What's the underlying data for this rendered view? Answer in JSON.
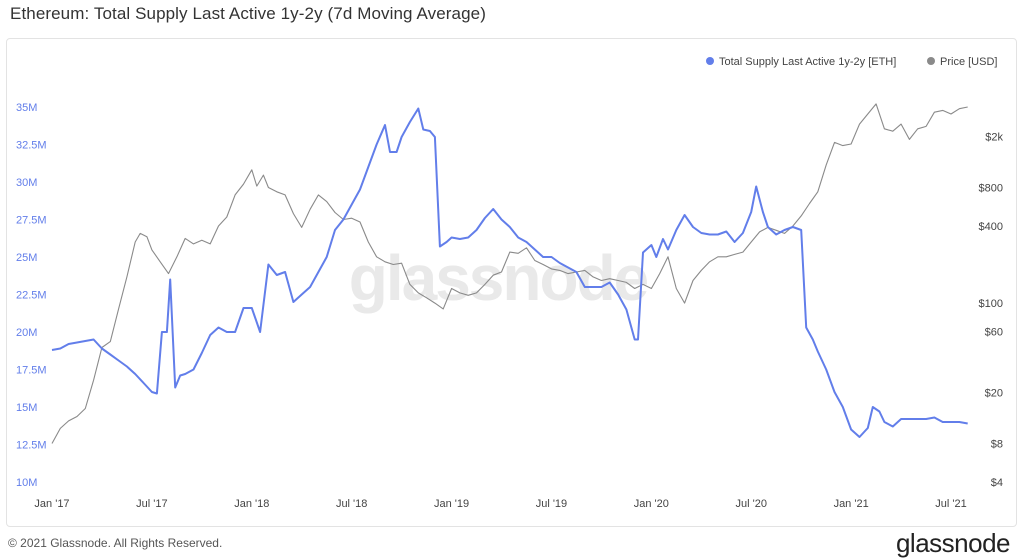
{
  "header": {
    "title": "Ethereum: Total Supply Last Active 1y-2y (7d Moving Average)"
  },
  "footer": {
    "copyright": "© 2021 Glassnode. All Rights Reserved.",
    "brand": "glassnode"
  },
  "watermark": "glassnode",
  "colors": {
    "supply": "#627eea",
    "price": "#8a8a8a"
  },
  "chart_data": {
    "type": "line",
    "title": "Ethereum: Total Supply Last Active 1y-2y (7d Moving Average)",
    "xlabel": "",
    "ylabel": "",
    "x_ticks": [
      "Jan '17",
      "Jul '17",
      "Jan '18",
      "Jul '18",
      "Jan '19",
      "Jul '19",
      "Jan '20",
      "Jul '20",
      "Jan '21",
      "Jul '21"
    ],
    "x_tick_positions": [
      0,
      6,
      12,
      18,
      24,
      30,
      36,
      42,
      48,
      54
    ],
    "y_left": {
      "ticks": [
        "10M",
        "12.5M",
        "15M",
        "17.5M",
        "20M",
        "22.5M",
        "25M",
        "27.5M",
        "30M",
        "32.5M",
        "35M"
      ],
      "tick_values": [
        10,
        12.5,
        15,
        17.5,
        20,
        22.5,
        25,
        27.5,
        30,
        32.5,
        35
      ],
      "range": [
        10,
        35.6
      ],
      "unit": "M ETH"
    },
    "y_right": {
      "ticks": [
        "$4",
        "$8",
        "$20",
        "$60",
        "$100",
        "$400",
        "$800",
        "$2k"
      ],
      "tick_values": [
        4,
        8,
        20,
        60,
        100,
        400,
        800,
        2000
      ],
      "range": [
        4,
        4000
      ],
      "scale": "log",
      "unit": "USD"
    },
    "legend": [
      {
        "name": "Total Supply Last Active 1y-2y [ETH]",
        "color": "#627eea"
      },
      {
        "name": "Price [USD]",
        "color": "#8a8a8a"
      }
    ],
    "legend_position": "top-right",
    "series": [
      {
        "name": "Total Supply Last Active 1y-2y [ETH]",
        "axis": "left",
        "points": [
          [
            0,
            18.8
          ],
          [
            0.5,
            18.9
          ],
          [
            1,
            19.2
          ],
          [
            1.5,
            19.3
          ],
          [
            2,
            19.4
          ],
          [
            2.5,
            19.5
          ],
          [
            3,
            18.9
          ],
          [
            3.5,
            18.5
          ],
          [
            4,
            18.1
          ],
          [
            4.5,
            17.7
          ],
          [
            5,
            17.2
          ],
          [
            5.5,
            16.6
          ],
          [
            6,
            16.0
          ],
          [
            6.3,
            15.9
          ],
          [
            6.6,
            20.0
          ],
          [
            6.9,
            20.0
          ],
          [
            7.1,
            23.5
          ],
          [
            7.4,
            16.3
          ],
          [
            7.7,
            17.1
          ],
          [
            8,
            17.2
          ],
          [
            8.5,
            17.5
          ],
          [
            9,
            18.6
          ],
          [
            9.5,
            19.8
          ],
          [
            10,
            20.3
          ],
          [
            10.5,
            20.0
          ],
          [
            11,
            20.0
          ],
          [
            11.5,
            21.6
          ],
          [
            12,
            21.6
          ],
          [
            12.5,
            20.0
          ],
          [
            13,
            24.5
          ],
          [
            13.5,
            23.8
          ],
          [
            14,
            24.0
          ],
          [
            14.5,
            22.0
          ],
          [
            15,
            22.5
          ],
          [
            15.5,
            23.0
          ],
          [
            16,
            24.0
          ],
          [
            16.5,
            25.0
          ],
          [
            17,
            26.8
          ],
          [
            17.5,
            27.5
          ],
          [
            18,
            28.5
          ],
          [
            18.5,
            29.5
          ],
          [
            19,
            31.0
          ],
          [
            19.5,
            32.5
          ],
          [
            20,
            33.8
          ],
          [
            20.3,
            32.0
          ],
          [
            20.7,
            32.0
          ],
          [
            21,
            33.0
          ],
          [
            21.5,
            34.0
          ],
          [
            22,
            34.9
          ],
          [
            22.3,
            33.5
          ],
          [
            22.7,
            33.4
          ],
          [
            23,
            33.0
          ],
          [
            23.3,
            25.7
          ],
          [
            23.7,
            26.0
          ],
          [
            24,
            26.3
          ],
          [
            24.5,
            26.2
          ],
          [
            25,
            26.3
          ],
          [
            25.5,
            26.8
          ],
          [
            26,
            27.6
          ],
          [
            26.5,
            28.2
          ],
          [
            27,
            27.5
          ],
          [
            27.5,
            27.0
          ],
          [
            28,
            26.3
          ],
          [
            28.5,
            26.0
          ],
          [
            29,
            25.5
          ],
          [
            29.5,
            25.0
          ],
          [
            30,
            25.0
          ],
          [
            30.5,
            24.6
          ],
          [
            31,
            24.3
          ],
          [
            31.5,
            24.0
          ],
          [
            32,
            23.0
          ],
          [
            32.5,
            23.0
          ],
          [
            33,
            23.0
          ],
          [
            33.5,
            23.3
          ],
          [
            34,
            22.5
          ],
          [
            34.5,
            21.5
          ],
          [
            35,
            19.5
          ],
          [
            35.2,
            19.5
          ],
          [
            35.5,
            25.3
          ],
          [
            36,
            25.8
          ],
          [
            36.3,
            25.0
          ],
          [
            36.7,
            26.2
          ],
          [
            37,
            25.5
          ],
          [
            37.5,
            26.8
          ],
          [
            38,
            27.8
          ],
          [
            38.5,
            27.0
          ],
          [
            39,
            26.6
          ],
          [
            39.5,
            26.5
          ],
          [
            40,
            26.5
          ],
          [
            40.5,
            26.7
          ],
          [
            41,
            26.0
          ],
          [
            41.5,
            26.6
          ],
          [
            42,
            28.0
          ],
          [
            42.3,
            29.7
          ],
          [
            42.7,
            28.0
          ],
          [
            43,
            27.0
          ],
          [
            43.5,
            26.5
          ],
          [
            44,
            26.8
          ],
          [
            44.5,
            27.0
          ],
          [
            45,
            26.8
          ],
          [
            45.3,
            20.3
          ],
          [
            45.7,
            19.5
          ],
          [
            46,
            18.7
          ],
          [
            46.5,
            17.5
          ],
          [
            47,
            16.0
          ],
          [
            47.5,
            15.0
          ],
          [
            48,
            13.5
          ],
          [
            48.5,
            13.0
          ],
          [
            49,
            13.6
          ],
          [
            49.3,
            15.0
          ],
          [
            49.7,
            14.7
          ],
          [
            50,
            14.0
          ],
          [
            50.5,
            13.7
          ],
          [
            51,
            14.2
          ],
          [
            51.5,
            14.2
          ],
          [
            52,
            14.2
          ],
          [
            52.5,
            14.2
          ],
          [
            53,
            14.3
          ],
          [
            53.5,
            14.0
          ],
          [
            54,
            14.0
          ],
          [
            54.5,
            14.0
          ],
          [
            55,
            13.9
          ]
        ]
      },
      {
        "name": "Price [USD]",
        "axis": "right",
        "points": [
          [
            0,
            8.0
          ],
          [
            0.5,
            10.5
          ],
          [
            1,
            12.0
          ],
          [
            1.5,
            13.0
          ],
          [
            2,
            15.0
          ],
          [
            2.5,
            25
          ],
          [
            3,
            45
          ],
          [
            3.5,
            50
          ],
          [
            4,
            90
          ],
          [
            4.5,
            160
          ],
          [
            5,
            300
          ],
          [
            5.3,
            350
          ],
          [
            5.7,
            330
          ],
          [
            6,
            260
          ],
          [
            6.5,
            210
          ],
          [
            7,
            170
          ],
          [
            7.5,
            230
          ],
          [
            8,
            320
          ],
          [
            8.5,
            290
          ],
          [
            9,
            310
          ],
          [
            9.5,
            290
          ],
          [
            10,
            400
          ],
          [
            10.5,
            470
          ],
          [
            11,
            700
          ],
          [
            11.5,
            850
          ],
          [
            12,
            1100
          ],
          [
            12.3,
            820
          ],
          [
            12.7,
            1000
          ],
          [
            13,
            800
          ],
          [
            13.5,
            740
          ],
          [
            14,
            700
          ],
          [
            14.5,
            500
          ],
          [
            15,
            390
          ],
          [
            15.5,
            540
          ],
          [
            16,
            700
          ],
          [
            16.5,
            620
          ],
          [
            17,
            510
          ],
          [
            17.5,
            450
          ],
          [
            18,
            460
          ],
          [
            18.5,
            430
          ],
          [
            19,
            300
          ],
          [
            19.5,
            230
          ],
          [
            20,
            210
          ],
          [
            20.5,
            200
          ],
          [
            21,
            205
          ],
          [
            21.5,
            140
          ],
          [
            22,
            120
          ],
          [
            22.5,
            110
          ],
          [
            23,
            100
          ],
          [
            23.5,
            90
          ],
          [
            24,
            130
          ],
          [
            24.5,
            120
          ],
          [
            25,
            115
          ],
          [
            25.5,
            120
          ],
          [
            26,
            140
          ],
          [
            26.5,
            165
          ],
          [
            27,
            175
          ],
          [
            27.5,
            250
          ],
          [
            28,
            245
          ],
          [
            28.5,
            270
          ],
          [
            29,
            215
          ],
          [
            29.5,
            200
          ],
          [
            30,
            185
          ],
          [
            30.5,
            180
          ],
          [
            31,
            170
          ],
          [
            31.5,
            175
          ],
          [
            32,
            180
          ],
          [
            32.5,
            160
          ],
          [
            33,
            150
          ],
          [
            33.5,
            155
          ],
          [
            34,
            150
          ],
          [
            34.5,
            145
          ],
          [
            35,
            130
          ],
          [
            35.5,
            140
          ],
          [
            36,
            130
          ],
          [
            36.5,
            170
          ],
          [
            37,
            230
          ],
          [
            37.5,
            130
          ],
          [
            38,
            100
          ],
          [
            38.5,
            150
          ],
          [
            39,
            180
          ],
          [
            39.5,
            210
          ],
          [
            40,
            230
          ],
          [
            40.5,
            230
          ],
          [
            41,
            240
          ],
          [
            41.5,
            250
          ],
          [
            42,
            300
          ],
          [
            42.5,
            360
          ],
          [
            43,
            390
          ],
          [
            43.5,
            370
          ],
          [
            44,
            350
          ],
          [
            44.5,
            400
          ],
          [
            45,
            480
          ],
          [
            45.5,
            600
          ],
          [
            46,
            740
          ],
          [
            46.5,
            1200
          ],
          [
            47,
            1800
          ],
          [
            47.5,
            1700
          ],
          [
            48,
            1750
          ],
          [
            48.5,
            2500
          ],
          [
            49,
            3000
          ],
          [
            49.5,
            3600
          ],
          [
            50,
            2300
          ],
          [
            50.5,
            2200
          ],
          [
            51,
            2500
          ],
          [
            51.5,
            1900
          ],
          [
            52,
            2300
          ],
          [
            52.5,
            2400
          ],
          [
            53,
            3100
          ],
          [
            53.5,
            3200
          ],
          [
            54,
            3000
          ],
          [
            54.5,
            3300
          ],
          [
            55,
            3400
          ]
        ]
      }
    ]
  }
}
